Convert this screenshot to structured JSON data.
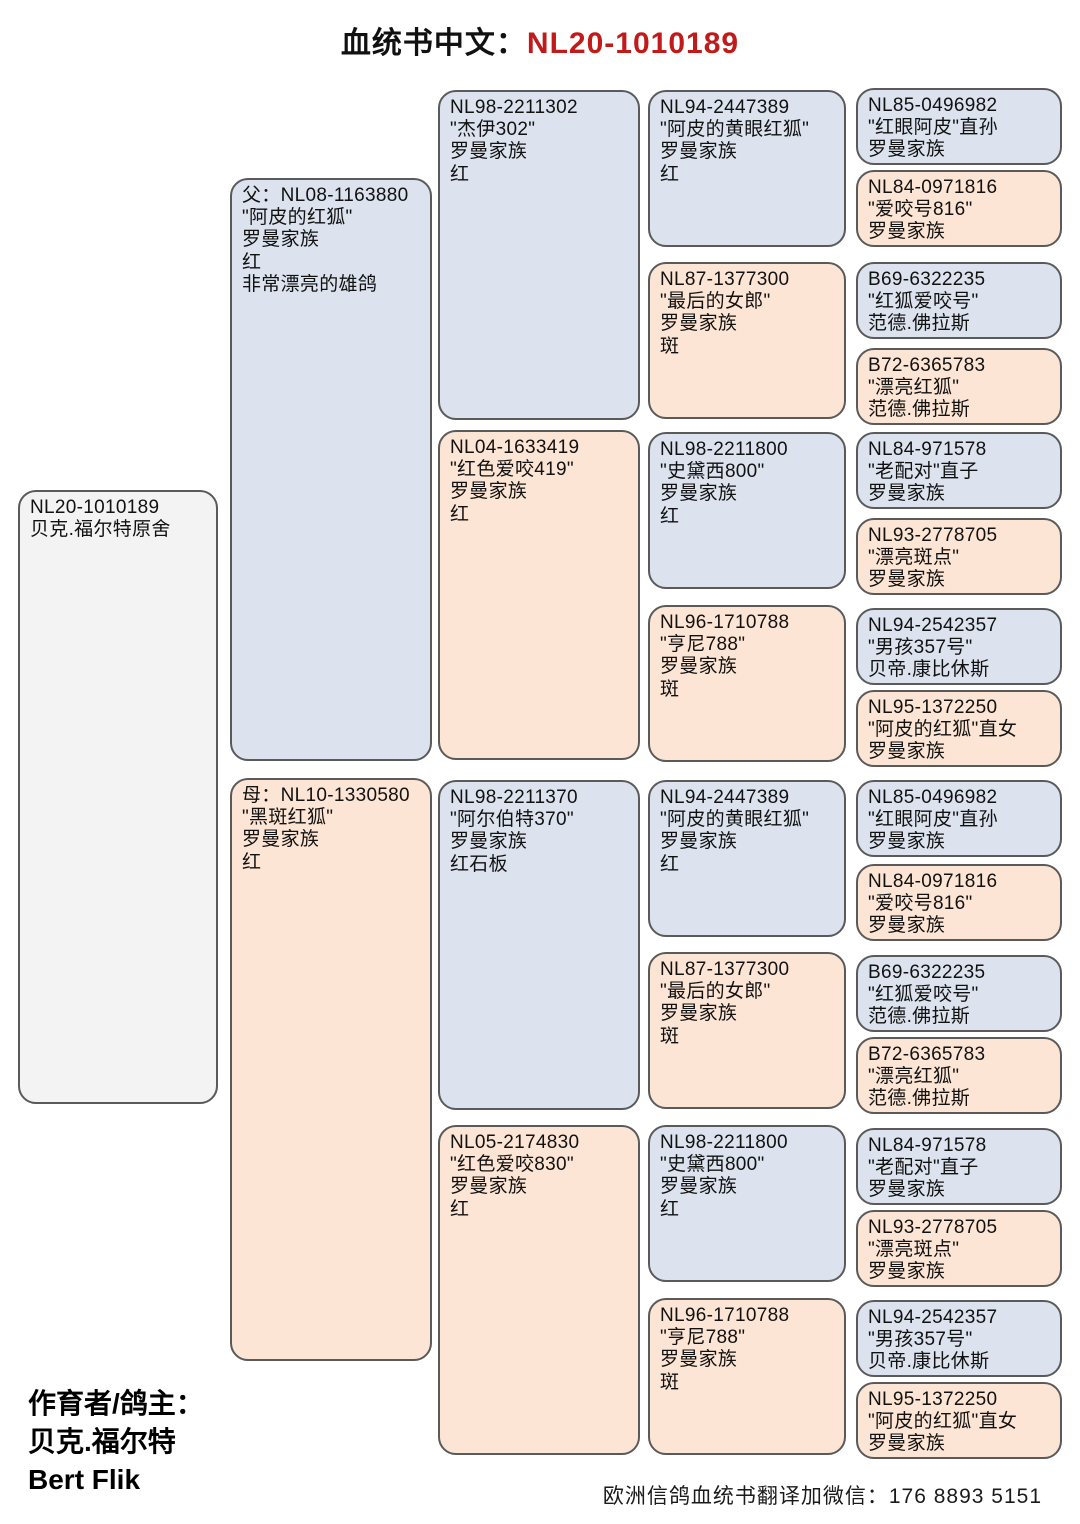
{
  "title": {
    "prefix": "血统书中文：",
    "id": "NL20-1010189"
  },
  "colors": {
    "title_red": "#c11a1a",
    "box_blue": "#dce3ee",
    "box_orange": "#fce5d4",
    "box_root": "#f3f3f3",
    "box_border": "#5a5a5a"
  },
  "generations": [
    {
      "name": "subject",
      "boxes": [
        {
          "variant": "gray",
          "lines": [
            "NL20-1010189",
            "贝克.福尔特原舍"
          ]
        }
      ]
    },
    {
      "name": "parents",
      "boxes": [
        {
          "variant": "blue",
          "lines": [
            "父：NL08-1163880",
            "\"阿皮的红狐\"",
            "罗曼家族",
            "红",
            "非常漂亮的雄鸽"
          ]
        },
        {
          "variant": "orange",
          "lines": [
            "母：NL10-1330580",
            "\"黑斑红狐\"",
            "罗曼家族",
            "红"
          ]
        }
      ]
    },
    {
      "name": "grandparents",
      "boxes": [
        {
          "variant": "blue",
          "lines": [
            "NL98-2211302",
            "\"杰伊302\"",
            "罗曼家族",
            "红"
          ]
        },
        {
          "variant": "orange",
          "lines": [
            "NL04-1633419",
            "\"红色爱咬419\"",
            "罗曼家族",
            "红"
          ]
        },
        {
          "variant": "blue",
          "lines": [
            "NL98-2211370",
            "\"阿尔伯特370\"",
            "罗曼家族",
            "红石板"
          ]
        },
        {
          "variant": "orange",
          "lines": [
            "NL05-2174830",
            "\"红色爱咬830\"",
            "罗曼家族",
            "红"
          ]
        }
      ]
    },
    {
      "name": "great-grandparents",
      "boxes": [
        {
          "variant": "blue",
          "lines": [
            "NL94-2447389",
            "\"阿皮的黄眼红狐\"",
            "罗曼家族",
            "红"
          ]
        },
        {
          "variant": "orange",
          "lines": [
            "NL87-1377300",
            "\"最后的女郎\"",
            "罗曼家族",
            "斑"
          ]
        },
        {
          "variant": "blue",
          "lines": [
            "NL98-2211800",
            "\"史黛西800\"",
            "罗曼家族",
            "红"
          ]
        },
        {
          "variant": "orange",
          "lines": [
            "NL96-1710788",
            "\"亨尼788\"",
            "罗曼家族",
            "斑"
          ]
        },
        {
          "variant": "blue",
          "lines": [
            "NL94-2447389",
            "\"阿皮的黄眼红狐\"",
            "罗曼家族",
            "红"
          ]
        },
        {
          "variant": "orange",
          "lines": [
            "NL87-1377300",
            "\"最后的女郎\"",
            "罗曼家族",
            "斑"
          ]
        },
        {
          "variant": "blue",
          "lines": [
            "NL98-2211800",
            "\"史黛西800\"",
            "罗曼家族",
            "红"
          ]
        },
        {
          "variant": "orange",
          "lines": [
            "NL96-1710788",
            "\"亨尼788\"",
            "罗曼家族",
            "斑"
          ]
        }
      ]
    },
    {
      "name": "great-great-grandparents",
      "boxes": [
        {
          "variant": "blue",
          "lines": [
            "NL85-0496982",
            "\"红眼阿皮\"直孙",
            "罗曼家族"
          ]
        },
        {
          "variant": "orange",
          "lines": [
            "NL84-0971816",
            "\"爱咬号816\"",
            "罗曼家族"
          ]
        },
        {
          "variant": "blue",
          "lines": [
            "B69-6322235",
            "\"红狐爱咬号\"",
            "范德.佛拉斯"
          ]
        },
        {
          "variant": "orange",
          "lines": [
            "B72-6365783",
            "\"漂亮红狐\"",
            "范德.佛拉斯"
          ]
        },
        {
          "variant": "blue",
          "lines": [
            "NL84-971578",
            "\"老配对\"直子",
            "罗曼家族"
          ]
        },
        {
          "variant": "orange",
          "lines": [
            "NL93-2778705",
            "\"漂亮斑点\"",
            "罗曼家族"
          ]
        },
        {
          "variant": "blue",
          "lines": [
            "NL94-2542357",
            "\"男孩357号\"",
            "贝帝.康比休斯"
          ]
        },
        {
          "variant": "orange",
          "lines": [
            "NL95-1372250",
            "\"阿皮的红狐\"直女",
            "罗曼家族"
          ]
        },
        {
          "variant": "blue",
          "lines": [
            "NL85-0496982",
            "\"红眼阿皮\"直孙",
            "罗曼家族"
          ]
        },
        {
          "variant": "orange",
          "lines": [
            "NL84-0971816",
            "\"爱咬号816\"",
            "罗曼家族"
          ]
        },
        {
          "variant": "blue",
          "lines": [
            "B69-6322235",
            "\"红狐爱咬号\"",
            "范德.佛拉斯"
          ]
        },
        {
          "variant": "orange",
          "lines": [
            "B72-6365783",
            "\"漂亮红狐\"",
            "范德.佛拉斯"
          ]
        },
        {
          "variant": "blue",
          "lines": [
            "NL84-971578",
            "\"老配对\"直子",
            "罗曼家族"
          ]
        },
        {
          "variant": "orange",
          "lines": [
            "NL93-2778705",
            "\"漂亮斑点\"",
            "罗曼家族"
          ]
        },
        {
          "variant": "blue",
          "lines": [
            "NL94-2542357",
            "\"男孩357号\"",
            "贝帝.康比休斯"
          ]
        },
        {
          "variant": "orange",
          "lines": [
            "NL95-1372250",
            "\"阿皮的红狐\"直女",
            "罗曼家族"
          ]
        }
      ]
    }
  ],
  "footer": {
    "breeder_label": "作育者/鸽主：",
    "breeder_cn": "贝克.福尔特",
    "breeder_en": "Bert Flik",
    "contact": "欧洲信鸽血统书翻译加微信：176 8893 5151"
  }
}
